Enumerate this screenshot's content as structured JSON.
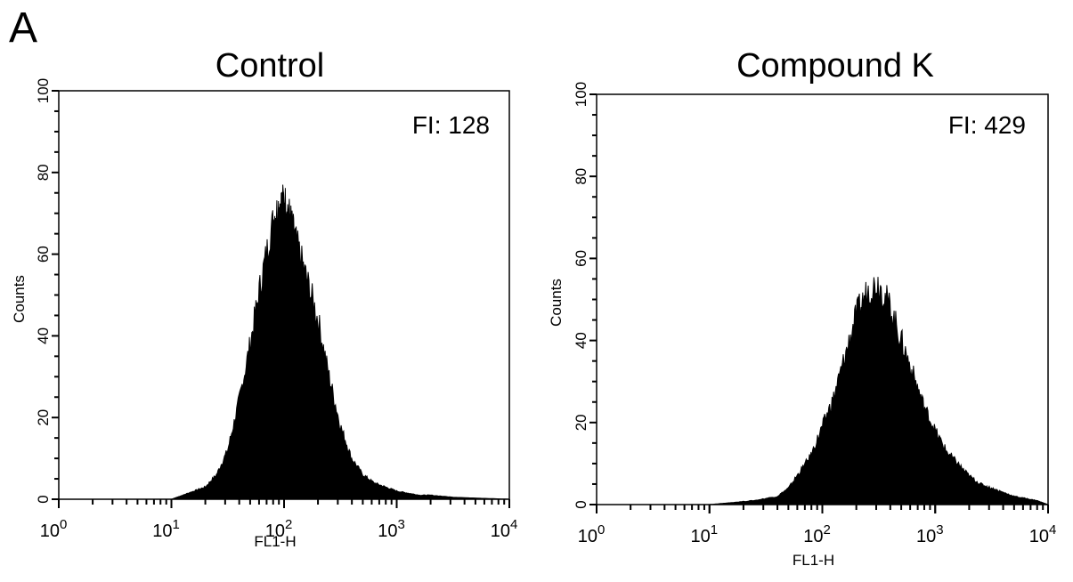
{
  "figure": {
    "panel_letter": "A"
  },
  "chart_data": [
    {
      "type": "area",
      "title": "Control",
      "annotation": "FI: 128",
      "xlabel": "FL1-H",
      "ylabel": "Counts",
      "x_scale": "log",
      "xlim": [
        1,
        10000
      ],
      "ylim": [
        0,
        100
      ],
      "x_tick_labels": [
        {
          "base": "10",
          "exp": "0"
        },
        {
          "base": "10",
          "exp": "1"
        },
        {
          "base": "10",
          "exp": "2"
        },
        {
          "base": "10",
          "exp": "3"
        },
        {
          "base": "10",
          "exp": "4"
        }
      ],
      "y_ticks": [
        0,
        20,
        40,
        60,
        80,
        100
      ],
      "grid": false,
      "fill_color": "#000000",
      "x": [
        1,
        10,
        12.6,
        15.8,
        20,
        25.1,
        31.6,
        39.8,
        50.1,
        63.1,
        79.4,
        89.1,
        100,
        112.2,
        125.9,
        158.5,
        199.5,
        251.2,
        316.2,
        398.1,
        501.2,
        631,
        794.3,
        1000,
        1258.9,
        1584.9,
        1995.3,
        3162.3,
        10000
      ],
      "y": [
        0,
        0,
        1,
        2,
        3,
        6,
        12,
        24,
        38,
        54,
        68,
        72,
        74,
        70,
        64,
        54,
        44,
        30,
        18,
        10,
        6,
        4,
        3,
        2,
        1.5,
        1,
        1,
        0.5,
        0
      ]
    },
    {
      "type": "area",
      "title": "Compound K",
      "annotation": "FI: 429",
      "xlabel": "FL1-H",
      "ylabel": "Counts",
      "x_scale": "log",
      "xlim": [
        1,
        10000
      ],
      "ylim": [
        0,
        100
      ],
      "x_tick_labels": [
        {
          "base": "10",
          "exp": "0"
        },
        {
          "base": "10",
          "exp": "1"
        },
        {
          "base": "10",
          "exp": "2"
        },
        {
          "base": "10",
          "exp": "3"
        },
        {
          "base": "10",
          "exp": "4"
        }
      ],
      "y_ticks": [
        0,
        20,
        40,
        60,
        80,
        100
      ],
      "grid": false,
      "fill_color": "#000000",
      "x": [
        1,
        10,
        15.8,
        25.1,
        39.8,
        50.1,
        63.1,
        79.4,
        100,
        125.9,
        158.5,
        199.5,
        251.2,
        316.2,
        398.1,
        501.2,
        631,
        794.3,
        1000,
        1258.9,
        1584.9,
        1995.3,
        2511.9,
        3162.3,
        3981.1,
        5011.9,
        6309.6,
        7943.3,
        10000
      ],
      "y": [
        0,
        0,
        0.5,
        1,
        2,
        4,
        8,
        12,
        19,
        26,
        36,
        46,
        52,
        54,
        48,
        40,
        32,
        24,
        18,
        13,
        10,
        7,
        5,
        4,
        3,
        2,
        1.5,
        1,
        0
      ]
    }
  ]
}
